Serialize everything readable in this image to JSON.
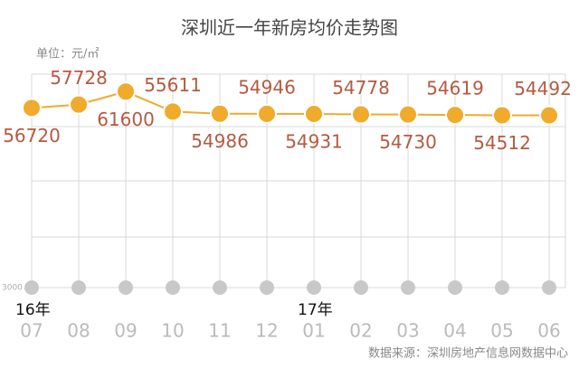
{
  "chart_data": {
    "type": "line",
    "title": "深圳近一年新房均价走势图",
    "unit_label": "单位：元/㎡",
    "source": "数据来源：深圳房地产信息网数据中心",
    "categories": [
      "07",
      "08",
      "09",
      "10",
      "11",
      "12",
      "01",
      "02",
      "03",
      "04",
      "05",
      "06"
    ],
    "year_labels": [
      "16年",
      null,
      null,
      null,
      null,
      null,
      "17年",
      null,
      null,
      null,
      null,
      null
    ],
    "values": [
      56720,
      57728,
      61600,
      55611,
      54986,
      54946,
      54931,
      54778,
      54730,
      54619,
      54512,
      54492
    ],
    "color": "#f0aa2c",
    "label_color": "#b45a40",
    "ylim": [
      3000,
      66000
    ],
    "yticks": [
      3000
    ]
  }
}
